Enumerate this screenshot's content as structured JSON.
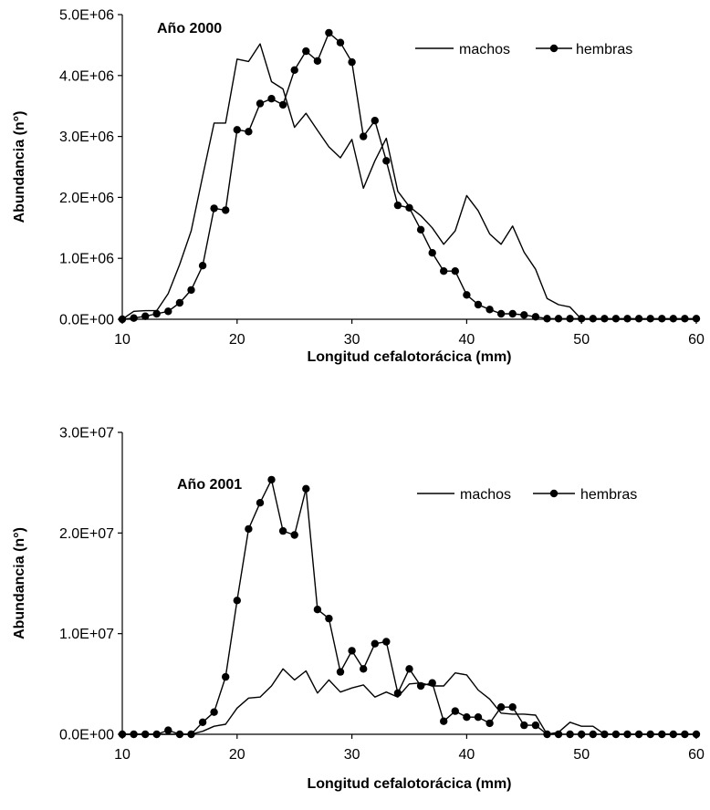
{
  "chart_data": [
    {
      "type": "line",
      "title": "Año 2000",
      "xlabel": "Longitud cefalotorácica (mm)",
      "ylabel": "Abundancia (n°)",
      "xlim": [
        10,
        60
      ],
      "ylim": [
        0,
        5000000
      ],
      "xticks": [
        10,
        20,
        30,
        40,
        50,
        60
      ],
      "xtick_labels": [
        "10",
        "20",
        "30",
        "40",
        "50",
        "60"
      ],
      "yticks": [
        0,
        1000000,
        2000000,
        3000000,
        4000000,
        5000000
      ],
      "ytick_labels": [
        "0.0E+00",
        "1.0E+06",
        "2.0E+06",
        "3.0E+06",
        "4.0E+06",
        "5.0E+06"
      ],
      "grid": false,
      "legend_position": "top-right",
      "series": [
        {
          "name": "machos",
          "marker": "none",
          "x": [
            10,
            11,
            12,
            13,
            14,
            15,
            16,
            17,
            18,
            19,
            20,
            21,
            22,
            23,
            24,
            25,
            26,
            27,
            28,
            29,
            30,
            31,
            32,
            33,
            34,
            35,
            36,
            37,
            38,
            39,
            40,
            41,
            42,
            43,
            44,
            45,
            46,
            47,
            48,
            49,
            50,
            51,
            52,
            53,
            54,
            55,
            56,
            57,
            58,
            59,
            60
          ],
          "y": [
            0,
            130000,
            140000,
            140000,
            420000,
            900000,
            1450000,
            2350000,
            3220000,
            3220000,
            4270000,
            4230000,
            4520000,
            3900000,
            3780000,
            3150000,
            3380000,
            3100000,
            2830000,
            2650000,
            2950000,
            2150000,
            2600000,
            2970000,
            2100000,
            1850000,
            1700000,
            1500000,
            1230000,
            1450000,
            2030000,
            1780000,
            1400000,
            1230000,
            1530000,
            1100000,
            820000,
            340000,
            240000,
            200000,
            0,
            0,
            0,
            0,
            0,
            0,
            0,
            0,
            0,
            0,
            0
          ]
        },
        {
          "name": "hembras",
          "marker": "circle",
          "x": [
            10,
            11,
            12,
            13,
            14,
            15,
            16,
            17,
            18,
            19,
            20,
            21,
            22,
            23,
            24,
            25,
            26,
            27,
            28,
            29,
            30,
            31,
            32,
            33,
            34,
            35,
            36,
            37,
            38,
            39,
            40,
            41,
            42,
            43,
            44,
            45,
            46,
            47,
            48,
            49,
            50,
            51,
            52,
            53,
            54,
            55,
            56,
            57,
            58,
            59,
            60
          ],
          "y": [
            0,
            20000,
            50000,
            90000,
            130000,
            270000,
            480000,
            880000,
            1820000,
            1790000,
            3110000,
            3080000,
            3540000,
            3620000,
            3520000,
            4090000,
            4400000,
            4240000,
            4700000,
            4540000,
            4220000,
            3000000,
            3260000,
            2600000,
            1870000,
            1830000,
            1470000,
            1090000,
            790000,
            790000,
            400000,
            240000,
            160000,
            90000,
            90000,
            70000,
            40000,
            10000,
            10000,
            10000,
            10000,
            10000,
            10000,
            10000,
            10000,
            10000,
            10000,
            10000,
            10000,
            10000,
            10000
          ]
        }
      ]
    },
    {
      "type": "line",
      "title": "Año 2001",
      "xlabel": "Longitud cefalotorácica (mm)",
      "ylabel": "Abundancia (n°)",
      "xlim": [
        10,
        60
      ],
      "ylim": [
        0,
        30000000
      ],
      "xticks": [
        10,
        20,
        30,
        40,
        50,
        60
      ],
      "xtick_labels": [
        "10",
        "20",
        "30",
        "40",
        "50",
        "60"
      ],
      "yticks": [
        0,
        10000000,
        20000000,
        30000000
      ],
      "ytick_labels": [
        "0.0E+00",
        "1.0E+07",
        "2.0E+07",
        "3.0E+07"
      ],
      "grid": false,
      "legend_position": "top-right",
      "series": [
        {
          "name": "machos",
          "marker": "none",
          "x": [
            10,
            11,
            12,
            13,
            14,
            15,
            16,
            17,
            18,
            19,
            20,
            21,
            22,
            23,
            24,
            25,
            26,
            27,
            28,
            29,
            30,
            31,
            32,
            33,
            34,
            35,
            36,
            37,
            38,
            39,
            40,
            41,
            42,
            43,
            44,
            45,
            46,
            47,
            48,
            49,
            50,
            51,
            52,
            53,
            54,
            55,
            56,
            57,
            58,
            59,
            60
          ],
          "y": [
            0,
            0,
            0,
            0,
            0,
            0,
            0,
            300000,
            800000,
            1000000,
            2600000,
            3600000,
            3700000,
            4800000,
            6500000,
            5400000,
            6300000,
            4100000,
            5400000,
            4200000,
            4600000,
            4900000,
            3700000,
            4200000,
            3700000,
            5000000,
            5100000,
            4800000,
            4800000,
            6100000,
            5900000,
            4400000,
            3500000,
            2100000,
            2000000,
            2000000,
            1900000,
            0,
            200000,
            1200000,
            800000,
            800000,
            0,
            0,
            0,
            0,
            0,
            0,
            0,
            0,
            0
          ]
        },
        {
          "name": "hembras",
          "marker": "circle",
          "x": [
            10,
            11,
            12,
            13,
            14,
            15,
            16,
            17,
            18,
            19,
            20,
            21,
            22,
            23,
            24,
            25,
            26,
            27,
            28,
            29,
            30,
            31,
            32,
            33,
            34,
            35,
            36,
            37,
            38,
            39,
            40,
            41,
            42,
            43,
            44,
            45,
            46,
            47,
            48,
            49,
            50,
            51,
            52,
            53,
            54,
            55,
            56,
            57,
            58,
            59,
            60
          ],
          "y": [
            0,
            0,
            0,
            0,
            400000,
            0,
            0,
            1200000,
            2200000,
            5700000,
            13300000,
            20400000,
            23000000,
            25300000,
            20200000,
            19800000,
            24400000,
            12400000,
            11500000,
            6200000,
            8300000,
            6500000,
            9000000,
            9200000,
            4100000,
            6500000,
            4800000,
            5100000,
            1300000,
            2300000,
            1700000,
            1700000,
            1100000,
            2700000,
            2700000,
            900000,
            900000,
            0,
            0,
            0,
            0,
            0,
            0,
            0,
            0,
            0,
            0,
            0,
            0,
            0,
            0
          ]
        }
      ]
    }
  ]
}
